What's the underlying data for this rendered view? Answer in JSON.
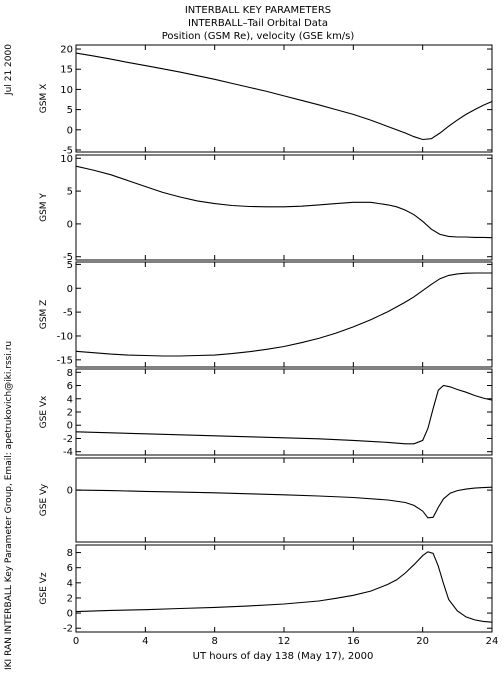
{
  "header": {
    "date_stamp": "Jul 21 2000",
    "title_lines": [
      "INTERBALL KEY PARAMETERS",
      "INTERBALL–Tail Orbital Data",
      "Position (GSM Re), velocity (GSE km/s)"
    ],
    "credit": "IKI RAN INTERBALL Key Parameter Group, Email: apetrukovich@iki.rssi.ru"
  },
  "chart_data": {
    "type": "line",
    "xlabel": "UT hours of day 138 (May 17), 2000",
    "x_ticks": [
      0,
      4,
      8,
      12,
      16,
      20,
      24
    ],
    "xlim": [
      0,
      24
    ],
    "panels": [
      {
        "ylabel": "GSM X",
        "ylim": [
          -5.5,
          21
        ],
        "y_ticks": [
          -5,
          0,
          5,
          10,
          15,
          20
        ],
        "x": [
          0,
          1,
          2,
          3,
          4,
          5,
          6,
          7,
          8,
          9,
          10,
          11,
          12,
          13,
          14,
          15,
          16,
          17,
          18,
          19,
          19.5,
          20,
          20.5,
          21,
          21.5,
          22,
          22.5,
          23,
          23.5,
          24
        ],
        "y": [
          19,
          18.3,
          17.5,
          16.7,
          15.9,
          15.1,
          14.3,
          13.4,
          12.5,
          11.5,
          10.5,
          9.5,
          8.4,
          7.3,
          6.2,
          5,
          3.8,
          2.4,
          0.8,
          -0.8,
          -1.7,
          -2.4,
          -2.2,
          -0.8,
          0.9,
          2.4,
          3.8,
          5,
          6.1,
          7
        ]
      },
      {
        "ylabel": "GSM Y",
        "ylim": [
          -5.5,
          10.5
        ],
        "y_ticks": [
          -5,
          0,
          5,
          10
        ],
        "x": [
          0,
          1,
          2,
          3,
          4,
          5,
          6,
          7,
          8,
          9,
          10,
          11,
          12,
          13,
          14,
          15,
          16,
          17,
          18,
          18.5,
          19,
          19.5,
          20,
          20.5,
          21,
          21.5,
          22,
          22.5,
          23,
          23.5,
          24
        ],
        "y": [
          8.8,
          8.2,
          7.5,
          6.6,
          5.7,
          4.8,
          4.1,
          3.5,
          3.1,
          2.8,
          2.65,
          2.6,
          2.6,
          2.7,
          2.9,
          3.1,
          3.3,
          3.3,
          2.9,
          2.6,
          2.1,
          1.4,
          0.4,
          -0.8,
          -1.6,
          -1.9,
          -2,
          -2,
          -2.05,
          -2.05,
          -2.1
        ]
      },
      {
        "ylabel": "GSM Z",
        "ylim": [
          -16.5,
          5.5
        ],
        "y_ticks": [
          -15,
          -10,
          -5,
          0,
          5
        ],
        "x": [
          0,
          1,
          2,
          3,
          4,
          5,
          6,
          7,
          8,
          9,
          10,
          11,
          12,
          13,
          14,
          15,
          16,
          17,
          18,
          19,
          19.5,
          20,
          20.5,
          21,
          21.5,
          22,
          22.5,
          23,
          23.5,
          24
        ],
        "y": [
          -13.2,
          -13.5,
          -13.8,
          -14,
          -14.1,
          -14.2,
          -14.2,
          -14.1,
          -14,
          -13.7,
          -13.3,
          -12.8,
          -12.2,
          -11.4,
          -10.5,
          -9.4,
          -8.1,
          -6.6,
          -4.9,
          -2.9,
          -1.8,
          -0.5,
          0.8,
          2,
          2.7,
          3,
          3.15,
          3.2,
          3.2,
          3.2
        ]
      },
      {
        "ylabel": "GSE Vx",
        "ylim": [
          -4.5,
          8.5
        ],
        "y_ticks": [
          -4,
          -2,
          0,
          2,
          4,
          6,
          8
        ],
        "x": [
          0,
          2,
          4,
          6,
          8,
          10,
          12,
          14,
          16,
          18,
          19,
          19.5,
          20,
          20.3,
          20.6,
          20.9,
          21.2,
          21.6,
          22,
          22.5,
          23,
          23.5,
          24
        ],
        "y": [
          -1,
          -1.15,
          -1.3,
          -1.45,
          -1.6,
          -1.75,
          -1.9,
          -2.05,
          -2.3,
          -2.6,
          -2.8,
          -2.8,
          -2.3,
          -0.5,
          2.5,
          5.3,
          6,
          5.8,
          5.4,
          5,
          4.5,
          4.1,
          3.8
        ]
      },
      {
        "ylabel": "GSE Vy",
        "ylim": [
          -2.1,
          1.3
        ],
        "y_ticks": [
          0
        ],
        "x": [
          0,
          2,
          4,
          6,
          8,
          10,
          12,
          14,
          16,
          18,
          19,
          19.5,
          20,
          20.3,
          20.6,
          20.9,
          21.2,
          21.6,
          22,
          22.5,
          23,
          23.5,
          24
        ],
        "y": [
          0,
          -0.02,
          -0.05,
          -0.08,
          -0.11,
          -0.15,
          -0.19,
          -0.24,
          -0.3,
          -0.4,
          -0.5,
          -0.62,
          -0.85,
          -1.12,
          -1.1,
          -0.7,
          -0.35,
          -0.12,
          -0.02,
          0.04,
          0.08,
          0.1,
          0.12
        ]
      },
      {
        "ylabel": "GSE Vz",
        "ylim": [
          -2.5,
          9
        ],
        "y_ticks": [
          -2,
          0,
          2,
          4,
          6,
          8
        ],
        "x": [
          0,
          2,
          4,
          6,
          8,
          10,
          12,
          14,
          15,
          16,
          17,
          18,
          18.5,
          19,
          19.5,
          20,
          20.3,
          20.6,
          20.9,
          21.2,
          21.5,
          22,
          22.5,
          23,
          23.5,
          24
        ],
        "y": [
          0.2,
          0.35,
          0.45,
          0.6,
          0.75,
          0.95,
          1.2,
          1.6,
          1.95,
          2.35,
          2.9,
          3.8,
          4.4,
          5.3,
          6.4,
          7.6,
          8.1,
          7.9,
          6.2,
          3.9,
          1.8,
          0.3,
          -0.5,
          -0.9,
          -1.1,
          -1.2
        ]
      }
    ]
  }
}
